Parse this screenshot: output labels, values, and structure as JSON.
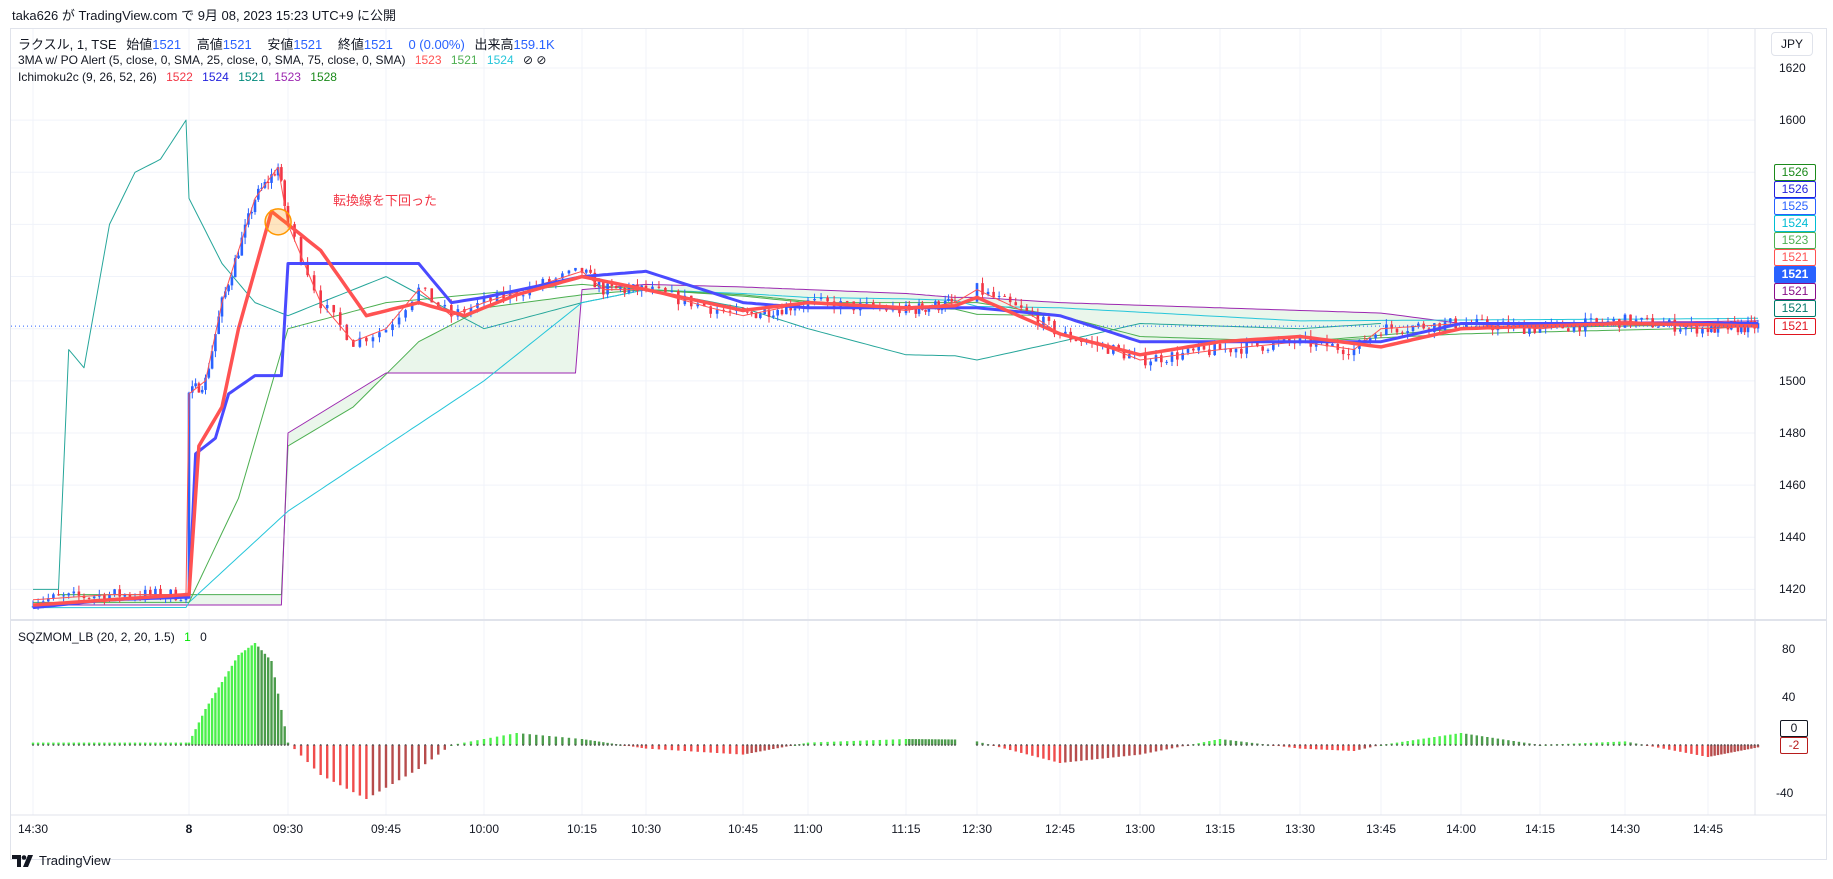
{
  "header": {
    "published": "taka626 が TradingView.com で 9月 08, 2023 15:23 UTC+9 に公開"
  },
  "legend": {
    "symbol": "ラクスル, 1, TSE",
    "open_label": "始値",
    "open": "1521",
    "high_label": "高値",
    "high": "1521",
    "low_label": "安値",
    "low": "1521",
    "close_label": "終値",
    "close": "1521",
    "change": "0 (0.00%)",
    "volume_label": "出来高",
    "volume": "159.1K",
    "ma_name": "3MA w/ PO Alert (5, close, 0, SMA, 25, close, 0, SMA, 75, close, 0, SMA)",
    "ma_values": [
      "1523",
      "1521",
      "1524"
    ],
    "ma_icons": "⊘ ⊘",
    "ichi_name": "Ichimoku2c (9, 26, 52, 26)",
    "ichi_values": [
      "1522",
      "1524",
      "1521",
      "1523",
      "1528"
    ],
    "sqz_name": "SQZMOM_LB (20, 2, 20, 1.5)",
    "sqz_values": [
      "1",
      "0"
    ]
  },
  "currency": "JPY",
  "annotation": "転換線を下回った",
  "brand": "TradingView",
  "colors": {
    "up": "#2962ff",
    "down": "#f23645",
    "tenkan": "#ff5252",
    "kijun": "#4a4aff",
    "sma25": "#4caf50",
    "sma75": "#26c6da",
    "chikou": "#26a69a",
    "spanA": "#4caf50",
    "spanB": "#9c27b0",
    "cloud": "#e8f5e9"
  },
  "price_labels": [
    {
      "v": "1526",
      "c": "#1b8a1b",
      "bg": "#fff"
    },
    {
      "v": "1526",
      "c": "#2222dd",
      "bg": "#fff"
    },
    {
      "v": "1525",
      "c": "#2962ff",
      "bg": "#fff"
    },
    {
      "v": "1524",
      "c": "#00bcd4",
      "bg": "#fff"
    },
    {
      "v": "1523",
      "c": "#4caf50",
      "bg": "#fff"
    },
    {
      "v": "1521",
      "c": "#ff5252",
      "bg": "#fff"
    },
    {
      "v": "1521",
      "c": "#fff",
      "bg": "#2962ff"
    },
    {
      "v": "1521",
      "c": "#880e88",
      "bg": "#fff"
    },
    {
      "v": "1521",
      "c": "#00796b",
      "bg": "#fff"
    },
    {
      "v": "1521",
      "c": "#e0141e",
      "bg": "#fff"
    }
  ],
  "chart_data": [
    {
      "type": "candlestick",
      "yaxis_ticks": [
        "1620",
        "1600",
        "1500",
        "1480",
        "1460",
        "1440",
        "1420"
      ],
      "all_y_ticks": [
        1620,
        1600,
        1580,
        1560,
        1540,
        1520,
        1500,
        1480,
        1460,
        1440,
        1420
      ],
      "ylim": [
        1410,
        1625
      ],
      "x_ticks": [
        "14:30",
        "8",
        "09:30",
        "09:45",
        "10:00",
        "10:15",
        "10:30",
        "10:45",
        "11:00",
        "11:15",
        "12:30",
        "12:45",
        "13:00",
        "13:15",
        "13:30",
        "13:45",
        "14:00",
        "14:15",
        "14:30",
        "14:45"
      ],
      "last_price": 1521,
      "close": [
        [
          "9/7 14:30",
          1416
        ],
        [
          "9/7 14:45",
          1418
        ],
        [
          "9/7 15:00",
          1418
        ],
        [
          "09:00",
          1495
        ],
        [
          "09:05",
          1500
        ],
        [
          "09:10",
          1530
        ],
        [
          "09:15",
          1550
        ],
        [
          "09:20",
          1570
        ],
        [
          "09:27",
          1582
        ],
        [
          "09:30",
          1560
        ],
        [
          "09:35",
          1530
        ],
        [
          "09:40",
          1515
        ],
        [
          "09:45",
          1520
        ],
        [
          "09:50",
          1535
        ],
        [
          "09:55",
          1525
        ],
        [
          "10:00",
          1530
        ],
        [
          "10:10",
          1538
        ],
        [
          "10:15",
          1542
        ],
        [
          "10:20",
          1535
        ],
        [
          "10:30",
          1535
        ],
        [
          "10:40",
          1528
        ],
        [
          "10:45",
          1525
        ],
        [
          "11:00",
          1530
        ],
        [
          "11:10",
          1528
        ],
        [
          "11:15",
          1527
        ],
        [
          "11:30",
          1530
        ],
        [
          "12:30",
          1535
        ],
        [
          "12:40",
          1525
        ],
        [
          "12:45",
          1518
        ],
        [
          "12:55",
          1512
        ],
        [
          "13:00",
          1508
        ],
        [
          "13:15",
          1512
        ],
        [
          "13:30",
          1515
        ],
        [
          "13:40",
          1512
        ],
        [
          "13:45",
          1520
        ],
        [
          "14:00",
          1522
        ],
        [
          "14:15",
          1520
        ],
        [
          "14:30",
          1523
        ],
        [
          "14:45",
          1520
        ],
        [
          "15:00",
          1521
        ]
      ],
      "tenkan": [
        [
          "9/7 14:30",
          1414
        ],
        [
          "9/7 15:00",
          1418
        ],
        [
          "09:00",
          1418
        ],
        [
          "09:03",
          1475
        ],
        [
          "09:10",
          1490
        ],
        [
          "09:15",
          1520
        ],
        [
          "09:25",
          1565
        ],
        [
          "09:30",
          1560
        ],
        [
          "09:35",
          1550
        ],
        [
          "09:42",
          1525
        ],
        [
          "09:50",
          1530
        ],
        [
          "09:57",
          1525
        ],
        [
          "10:05",
          1533
        ],
        [
          "10:15",
          1540
        ],
        [
          "10:30",
          1535
        ],
        [
          "10:45",
          1527
        ],
        [
          "11:00",
          1530
        ],
        [
          "11:15",
          1528
        ],
        [
          "12:30",
          1532
        ],
        [
          "12:45",
          1518
        ],
        [
          "13:00",
          1510
        ],
        [
          "13:15",
          1515
        ],
        [
          "13:30",
          1517
        ],
        [
          "13:45",
          1513
        ],
        [
          "14:00",
          1520
        ],
        [
          "14:15",
          1521
        ],
        [
          "14:30",
          1522
        ],
        [
          "15:00",
          1521
        ]
      ],
      "kijun": [
        [
          "9/7 14:30",
          1413
        ],
        [
          "9/7 14:45",
          1416
        ],
        [
          "9/7 15:00",
          1417
        ],
        [
          "09:00",
          1417
        ],
        [
          "09:02",
          1472
        ],
        [
          "09:08",
          1478
        ],
        [
          "09:12",
          1495
        ],
        [
          "09:20",
          1502
        ],
        [
          "09:28",
          1502
        ],
        [
          "09:30",
          1545
        ],
        [
          "09:50",
          1545
        ],
        [
          "09:55",
          1530
        ],
        [
          "10:00",
          1532
        ],
        [
          "10:15",
          1540
        ],
        [
          "10:30",
          1542
        ],
        [
          "10:45",
          1530
        ],
        [
          "11:00",
          1528
        ],
        [
          "12:30",
          1528
        ],
        [
          "12:45",
          1525
        ],
        [
          "13:00",
          1515
        ],
        [
          "13:45",
          1515
        ],
        [
          "14:00",
          1522
        ],
        [
          "15:00",
          1522
        ]
      ],
      "sma25": [
        [
          "9/7 14:30",
          1415
        ],
        [
          "09:00",
          1415
        ],
        [
          "09:15",
          1455
        ],
        [
          "09:30",
          1520
        ],
        [
          "09:45",
          1530
        ],
        [
          "10:15",
          1537
        ],
        [
          "10:45",
          1533
        ],
        [
          "11:15",
          1528
        ],
        [
          "12:45",
          1525
        ],
        [
          "13:00",
          1517
        ],
        [
          "13:30",
          1515
        ],
        [
          "14:00",
          1518
        ],
        [
          "15:00",
          1521
        ]
      ],
      "sma75": [
        [
          "9/7 14:30",
          1413
        ],
        [
          "09:00",
          1415
        ],
        [
          "09:30",
          1450
        ],
        [
          "10:00",
          1500
        ],
        [
          "10:15",
          1530
        ],
        [
          "10:30",
          1535
        ],
        [
          "11:00",
          1532
        ],
        [
          "12:45",
          1528
        ],
        [
          "13:30",
          1523
        ],
        [
          "15:00",
          1524
        ]
      ],
      "chikou": [
        [
          "9/7 14:30",
          1420
        ],
        [
          "9/7 14:35",
          1420
        ],
        [
          "9/7 14:37",
          1512
        ],
        [
          "9/7 14:40",
          1505
        ],
        [
          "9/7 14:45",
          1560
        ],
        [
          "9/7 14:50",
          1580
        ],
        [
          "9/7 14:55",
          1585
        ],
        [
          "9/7 15:00",
          1600
        ],
        [
          "09:00",
          1570
        ],
        [
          "09:10",
          1545
        ],
        [
          "09:20",
          1530
        ],
        [
          "09:30",
          1525
        ],
        [
          "09:45",
          1540
        ],
        [
          "10:00",
          1520
        ],
        [
          "10:15",
          1530
        ],
        [
          "10:30",
          1535
        ],
        [
          "10:45",
          1528
        ],
        [
          "11:00",
          1520
        ],
        [
          "11:15",
          1510
        ],
        [
          "12:30",
          1508
        ],
        [
          "12:45",
          1515
        ],
        [
          "13:00",
          1522
        ],
        [
          "13:30",
          1520
        ],
        [
          "13:45",
          1522
        ]
      ],
      "spanA": [
        [
          "9/7 14:35",
          1418
        ],
        [
          "09:28",
          1418
        ],
        [
          "09:30",
          1475
        ],
        [
          "09:40",
          1490
        ],
        [
          "09:50",
          1515
        ],
        [
          "10:00",
          1528
        ],
        [
          "10:15",
          1533
        ],
        [
          "10:30",
          1535
        ],
        [
          "11:00",
          1530
        ],
        [
          "12:30",
          1530
        ],
        [
          "12:45",
          1525
        ],
        [
          "13:00",
          1515
        ],
        [
          "13:30",
          1515
        ],
        [
          "14:00",
          1520
        ],
        [
          "15:00",
          1522
        ]
      ],
      "spanB": [
        [
          "9/7 14:35",
          1414
        ],
        [
          "09:28",
          1414
        ],
        [
          "09:30",
          1480
        ],
        [
          "09:45",
          1503
        ],
        [
          "10:14",
          1503
        ],
        [
          "10:15",
          1535
        ],
        [
          "10:30",
          1537
        ],
        [
          "11:00",
          1535
        ],
        [
          "11:30",
          1532
        ],
        [
          "12:30",
          1532
        ],
        [
          "12:45",
          1530
        ],
        [
          "13:15",
          1528
        ],
        [
          "13:45",
          1526
        ],
        [
          "14:00",
          1522
        ],
        [
          "15:00",
          1523
        ]
      ]
    },
    {
      "type": "bar",
      "name": "SQZMOM_LB",
      "yaxis_ticks": [
        "80",
        "40",
        "-40"
      ],
      "current_labels": [
        {
          "v": "0",
          "c": "#131722"
        },
        {
          "v": "-2",
          "c": "#b71c1c"
        }
      ],
      "momentum": [
        [
          "9/7 14:30",
          2
        ],
        [
          "9/7 15:00",
          2
        ],
        [
          "09:00",
          2
        ],
        [
          "09:05",
          30
        ],
        [
          "09:15",
          75
        ],
        [
          "09:20",
          85
        ],
        [
          "09:25",
          70
        ],
        [
          "09:30",
          2
        ],
        [
          "09:35",
          -25
        ],
        [
          "09:42",
          -45
        ],
        [
          "09:50",
          -20
        ],
        [
          "09:55",
          0
        ],
        [
          "10:00",
          5
        ],
        [
          "10:05",
          10
        ],
        [
          "10:15",
          5
        ],
        [
          "10:30",
          -3
        ],
        [
          "10:45",
          -8
        ],
        [
          "11:00",
          2
        ],
        [
          "11:15",
          5
        ],
        [
          "12:30",
          3
        ],
        [
          "12:45",
          -15
        ],
        [
          "13:00",
          -8
        ],
        [
          "13:15",
          5
        ],
        [
          "13:30",
          -3
        ],
        [
          "13:40",
          -5
        ],
        [
          "13:45",
          0
        ],
        [
          "14:00",
          10
        ],
        [
          "14:15",
          0
        ],
        [
          "14:30",
          3
        ],
        [
          "14:45",
          -10
        ],
        [
          "15:00",
          -2
        ]
      ]
    }
  ]
}
